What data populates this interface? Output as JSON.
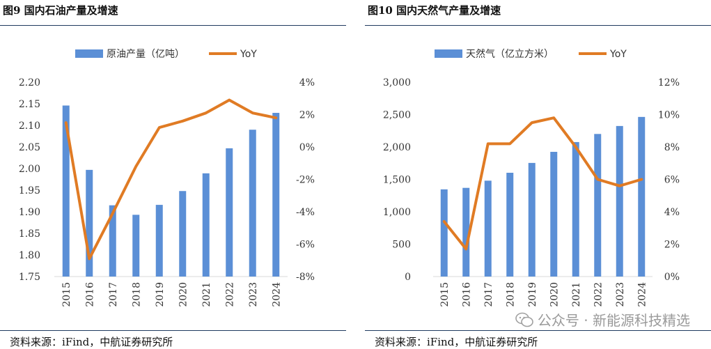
{
  "chart_data": [
    {
      "type": "bar",
      "title": "图9 国内石油产量及增速",
      "categories": [
        "2015",
        "2016",
        "2017",
        "2018",
        "2019",
        "2020",
        "2021",
        "2022",
        "2023",
        "2024"
      ],
      "series": [
        {
          "name": "原油产量（亿吨）",
          "type": "bar",
          "axis": "left",
          "values": [
            2.146,
            1.997,
            1.915,
            1.893,
            1.916,
            1.948,
            1.989,
            2.047,
            2.09,
            2.129
          ]
        },
        {
          "name": "YoY",
          "type": "line",
          "axis": "right",
          "values": [
            1.5,
            -6.9,
            -4.1,
            -1.2,
            1.2,
            1.6,
            2.1,
            2.9,
            2.1,
            1.8
          ]
        }
      ],
      "ylim_left": [
        1.75,
        2.2
      ],
      "yticks_left": [
        "2.20",
        "2.15",
        "2.10",
        "2.05",
        "2.00",
        "1.95",
        "1.90",
        "1.85",
        "1.80",
        "1.75"
      ],
      "ylim_right": [
        -8,
        4
      ],
      "yticks_right": [
        "4%",
        "2%",
        "0%",
        "-2%",
        "-4%",
        "-6%",
        "-8%"
      ],
      "legend_position": "top",
      "source": "资料来源：iFind，中航证券研究所"
    },
    {
      "type": "bar",
      "title": "图10 国内天然气产量及增速",
      "categories": [
        "2015",
        "2016",
        "2017",
        "2018",
        "2019",
        "2020",
        "2021",
        "2022",
        "2023",
        "2024"
      ],
      "series": [
        {
          "name": "天然气（亿立方米）",
          "type": "bar",
          "axis": "left",
          "values": [
            1346,
            1369,
            1480,
            1602,
            1754,
            1925,
            2076,
            2201,
            2324,
            2464
          ]
        },
        {
          "name": "YoY",
          "type": "line",
          "axis": "right",
          "values": [
            3.4,
            1.7,
            8.2,
            8.2,
            9.5,
            9.8,
            8.0,
            6.0,
            5.6,
            6.0
          ]
        }
      ],
      "ylim_left": [
        0,
        3000
      ],
      "yticks_left": [
        "3,000",
        "2,500",
        "2,000",
        "1,500",
        "1,000",
        "500",
        "0"
      ],
      "ylim_right": [
        0,
        12
      ],
      "yticks_right": [
        "12%",
        "10%",
        "8%",
        "6%",
        "4%",
        "2%",
        "0%"
      ],
      "legend_position": "top",
      "source": "资料来源：iFind，中航证券研究所"
    }
  ],
  "watermark": "公众号 · 新能源科技精选",
  "colors": {
    "bar": "#5b8fd6",
    "line": "#e07b24",
    "grid": "#d9d9d9",
    "rule": "#1f3a5f"
  }
}
